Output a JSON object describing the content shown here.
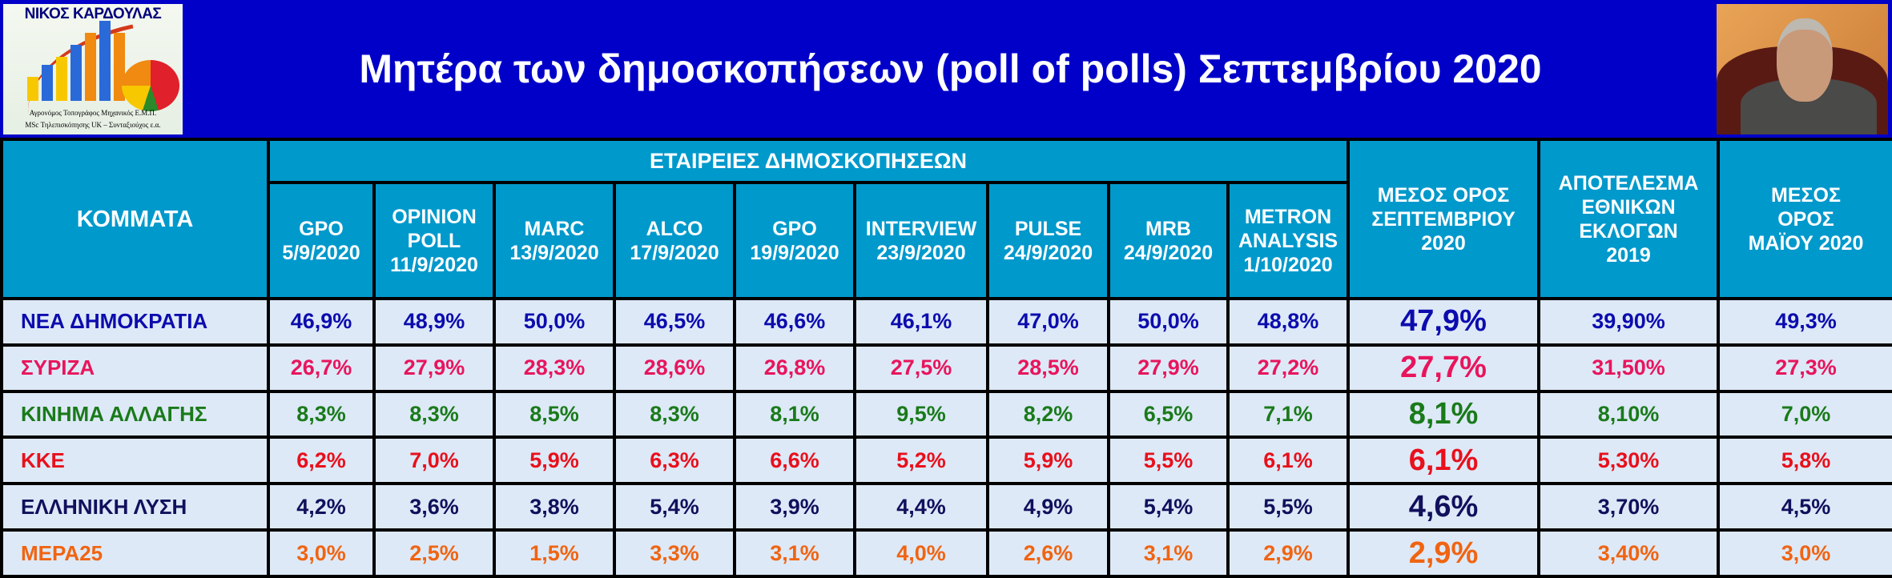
{
  "header": {
    "logo_name": "ΝΙΚΟΣ ΚΑΡΔΟΥΛΑΣ",
    "logo_line1": "Αγρονόμος Τοπογράφος Μηχανικός Ε.Μ.Π.",
    "logo_line2": "MSc Τηλεπισκόπησης UK – Συνταξιούχος ε.α.",
    "title": "Μητέρα των δημοσκοπήσεων (poll of polls) Σεπτεμβρίου 2020"
  },
  "table": {
    "party_header": "ΚΟΜΜΑΤΑ",
    "group_header": "ΕΤΑΙΡΕΙΕΣ ΔΗΜΟΣΚΟΠΗΣΕΩΝ",
    "polls": [
      {
        "name": "GPO",
        "date": "5/9/2020"
      },
      {
        "name": "OPINION POLL",
        "date": "11/9/2020"
      },
      {
        "name": "MARC",
        "date": "13/9/2020"
      },
      {
        "name": "ALCO",
        "date": "17/9/2020"
      },
      {
        "name": "GPO",
        "date": "19/9/2020"
      },
      {
        "name": "INTERVIEW",
        "date": "23/9/2020"
      },
      {
        "name": "PULSE",
        "date": "24/9/2020"
      },
      {
        "name": "MRB",
        "date": "24/9/2020"
      },
      {
        "name": "METRON ANALYSIS",
        "date": "1/10/2020"
      }
    ],
    "avg_header": "ΜΕΣΟΣ ΟΡΟΣ ΣΕΠΤΕΜΒΡΙΟΥ 2020",
    "election_header": "ΑΠΟΤΕΛΕΣΜΑ ΕΘΝΙΚΩΝ ΕΚΛΟΓΩΝ 2019",
    "may_header": "ΜΕΣΟΣ ΟΡΟΣ ΜΑΪΟΥ 2020",
    "rows": [
      {
        "party": "ΝΕΑ ΔΗΜΟΚΡΑΤΙΑ",
        "color": "#0c0cae",
        "values": [
          "46,9%",
          "48,9%",
          "50,0%",
          "46,5%",
          "46,6%",
          "46,1%",
          "47,0%",
          "50,0%",
          "48,8%"
        ],
        "avg": "47,9%",
        "election": "39,90%",
        "may": "49,3%"
      },
      {
        "party": "ΣΥΡΙΖΑ",
        "color": "#e8155c",
        "values": [
          "26,7%",
          "27,9%",
          "28,3%",
          "28,6%",
          "26,8%",
          "27,5%",
          "28,5%",
          "27,9%",
          "27,2%"
        ],
        "avg": "27,7%",
        "election": "31,50%",
        "may": "27,3%"
      },
      {
        "party": "ΚΙΝΗΜΑ ΑΛΛΑΓΗΣ",
        "color": "#1a7a1a",
        "values": [
          "8,3%",
          "8,3%",
          "8,5%",
          "8,3%",
          "8,1%",
          "9,5%",
          "8,2%",
          "6,5%",
          "7,1%"
        ],
        "avg": "8,1%",
        "election": "8,10%",
        "may": "7,0%"
      },
      {
        "party": "ΚΚΕ",
        "color": "#e8101c",
        "values": [
          "6,2%",
          "7,0%",
          "5,9%",
          "6,3%",
          "6,6%",
          "5,2%",
          "5,9%",
          "5,5%",
          "6,1%"
        ],
        "avg": "6,1%",
        "election": "5,30%",
        "may": "5,8%"
      },
      {
        "party": "ΕΛΛΗΝΙΚΗ ΛΥΣΗ",
        "color": "#10105c",
        "values": [
          "4,2%",
          "3,6%",
          "3,8%",
          "5,4%",
          "3,9%",
          "4,4%",
          "4,9%",
          "5,4%",
          "5,5%"
        ],
        "avg": "4,6%",
        "election": "3,70%",
        "may": "4,5%"
      },
      {
        "party": "ΜΕΡΑ25",
        "color": "#f06412",
        "values": [
          "3,0%",
          "2,5%",
          "1,5%",
          "3,3%",
          "3,1%",
          "4,0%",
          "2,6%",
          "3,1%",
          "2,9%"
        ],
        "avg": "2,9%",
        "election": "3,40%",
        "may": "3,0%"
      }
    ]
  },
  "colors": {
    "banner": "#0000c8",
    "header_bg": "#0099cc",
    "cell_bg": "#dde9f7"
  }
}
